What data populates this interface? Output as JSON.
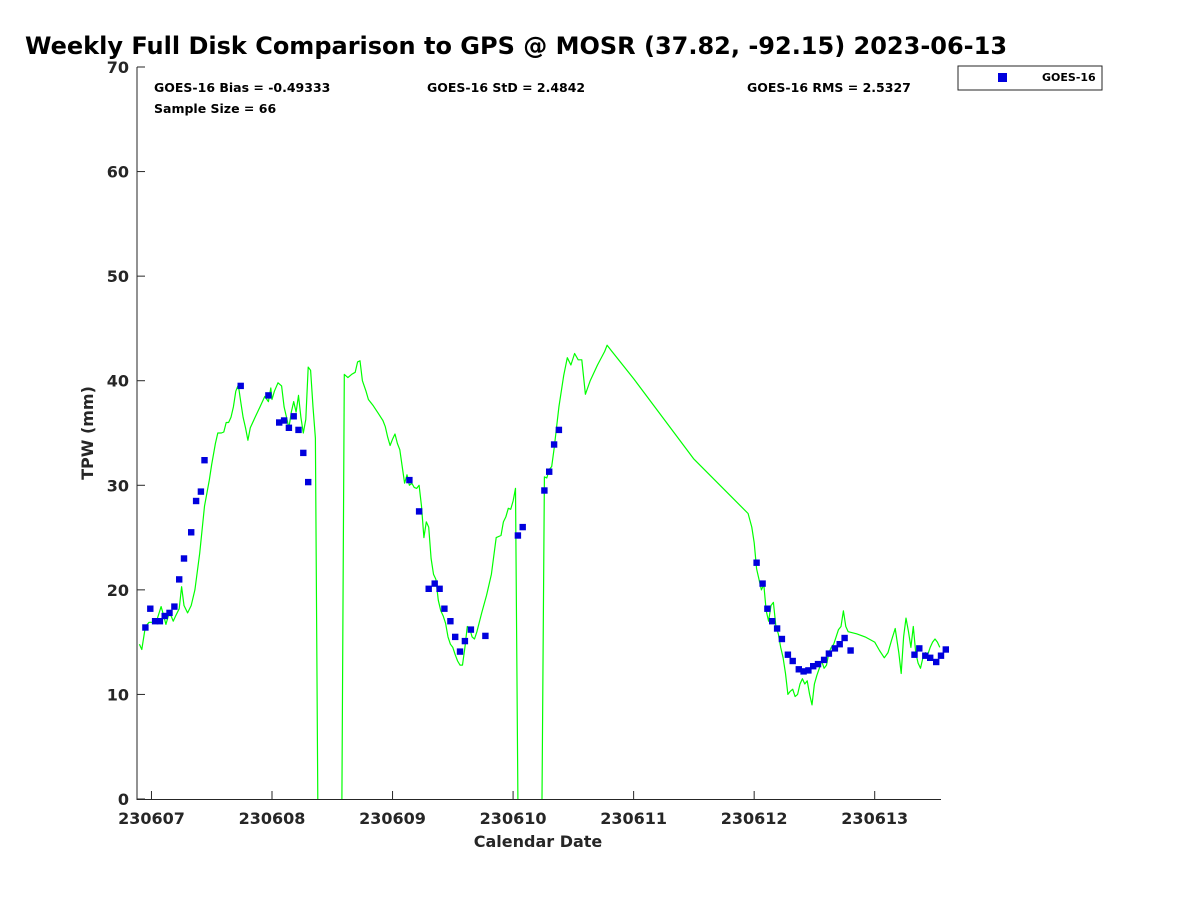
{
  "chart_data": {
    "type": "scatter",
    "title": "Weekly Full Disk Comparison to GPS @ MOSR (37.82, -92.15) 2023-06-13",
    "xlabel": "Calendar Date",
    "ylabel": "TPW (mm)",
    "xlim": [
      -0.12,
      6.55
    ],
    "ylim": [
      0,
      70
    ],
    "x_ticks": [
      {
        "value": 0,
        "label": "230607"
      },
      {
        "value": 1,
        "label": "230608"
      },
      {
        "value": 2,
        "label": "230609"
      },
      {
        "value": 3,
        "label": "230610"
      },
      {
        "value": 4,
        "label": "230611"
      },
      {
        "value": 5,
        "label": "230612"
      },
      {
        "value": 6,
        "label": "230613"
      }
    ],
    "y_ticks": [
      {
        "value": 0,
        "label": "0"
      },
      {
        "value": 10,
        "label": "10"
      },
      {
        "value": 20,
        "label": "20"
      },
      {
        "value": 30,
        "label": "30"
      },
      {
        "value": 40,
        "label": "40"
      },
      {
        "value": 50,
        "label": "50"
      },
      {
        "value": 60,
        "label": "60"
      },
      {
        "value": 70,
        "label": "70"
      }
    ],
    "stats": {
      "bias": "GOES-16 Bias = -0.49333",
      "std": "GOES-16 StD = 2.4842",
      "rms": "GOES-16 RMS = 2.5327",
      "sample": "Sample Size = 66"
    },
    "legend": {
      "position": "top-right-outside",
      "entries": [
        {
          "label": "GOES-16",
          "marker": "square",
          "color": "#0000dd"
        }
      ]
    },
    "gps_color": "#00ff00",
    "goes_color": "#0000dd",
    "series": [
      {
        "name": "GPS",
        "kind": "line",
        "points": [
          [
            -0.1,
            14.8
          ],
          [
            -0.08,
            14.3
          ],
          [
            -0.05,
            16.5
          ],
          [
            -0.02,
            16.9
          ],
          [
            0.02,
            16.9
          ],
          [
            0.05,
            17.3
          ],
          [
            0.08,
            18.4
          ],
          [
            0.1,
            17.6
          ],
          [
            0.12,
            16.7
          ],
          [
            0.15,
            17.9
          ],
          [
            0.18,
            17.0
          ],
          [
            0.2,
            17.5
          ],
          [
            0.23,
            18.2
          ],
          [
            0.25,
            20.3
          ],
          [
            0.27,
            18.5
          ],
          [
            0.3,
            17.8
          ],
          [
            0.33,
            18.5
          ],
          [
            0.36,
            20.0
          ],
          [
            0.4,
            23.5
          ],
          [
            0.44,
            28.0
          ],
          [
            0.48,
            30.5
          ],
          [
            0.5,
            32.0
          ],
          [
            0.53,
            34.0
          ],
          [
            0.55,
            35.0
          ],
          [
            0.58,
            35.0
          ],
          [
            0.6,
            35.1
          ],
          [
            0.62,
            36.0
          ],
          [
            0.64,
            36.0
          ],
          [
            0.66,
            36.5
          ],
          [
            0.68,
            37.5
          ],
          [
            0.7,
            39.0
          ],
          [
            0.72,
            39.6
          ],
          [
            0.74,
            38.0
          ],
          [
            0.76,
            36.5
          ],
          [
            0.78,
            35.5
          ],
          [
            0.8,
            34.3
          ],
          [
            0.82,
            35.5
          ],
          [
            0.86,
            36.5
          ],
          [
            0.9,
            37.5
          ],
          [
            0.94,
            38.5
          ],
          [
            0.97,
            38.0
          ],
          [
            0.99,
            39.3
          ],
          [
            1.0,
            38.2
          ],
          [
            1.02,
            39.0
          ],
          [
            1.05,
            39.8
          ],
          [
            1.08,
            39.5
          ],
          [
            1.1,
            37.5
          ],
          [
            1.12,
            36.5
          ],
          [
            1.14,
            35.5
          ],
          [
            1.16,
            37.0
          ],
          [
            1.18,
            38.0
          ],
          [
            1.2,
            37.0
          ],
          [
            1.22,
            38.6
          ],
          [
            1.24,
            36.5
          ],
          [
            1.26,
            35.0
          ],
          [
            1.28,
            36.3
          ],
          [
            1.3,
            41.3
          ],
          [
            1.32,
            41.0
          ],
          [
            1.34,
            37.5
          ],
          [
            1.36,
            34.5
          ],
          [
            1.38,
            0
          ],
          null,
          [
            1.58,
            0
          ],
          [
            1.6,
            40.6
          ],
          [
            1.63,
            40.3
          ],
          [
            1.66,
            40.6
          ],
          [
            1.69,
            40.8
          ],
          [
            1.71,
            41.8
          ],
          [
            1.73,
            41.9
          ],
          [
            1.75,
            40.0
          ],
          [
            1.78,
            39.0
          ],
          [
            1.8,
            38.2
          ],
          [
            1.84,
            37.6
          ],
          [
            1.88,
            36.9
          ],
          [
            1.92,
            36.2
          ],
          [
            1.94,
            35.6
          ],
          [
            1.96,
            34.6
          ],
          [
            1.98,
            33.8
          ],
          [
            2.0,
            34.4
          ],
          [
            2.02,
            34.9
          ],
          [
            2.04,
            34.0
          ],
          [
            2.06,
            33.4
          ],
          [
            2.08,
            31.8
          ],
          [
            2.1,
            30.2
          ],
          [
            2.12,
            31.0
          ],
          [
            2.14,
            30.0
          ],
          [
            2.16,
            30.2
          ],
          [
            2.18,
            29.8
          ],
          [
            2.2,
            29.7
          ],
          [
            2.22,
            30.0
          ],
          [
            2.24,
            28.0
          ],
          [
            2.26,
            25.0
          ],
          [
            2.28,
            26.5
          ],
          [
            2.3,
            26.0
          ],
          [
            2.32,
            23.0
          ],
          [
            2.34,
            21.5
          ],
          [
            2.36,
            21.0
          ],
          [
            2.38,
            19.0
          ],
          [
            2.4,
            18.0
          ],
          [
            2.42,
            17.5
          ],
          [
            2.44,
            16.8
          ],
          [
            2.46,
            15.5
          ],
          [
            2.48,
            14.8
          ],
          [
            2.5,
            14.5
          ],
          [
            2.52,
            13.8
          ],
          [
            2.54,
            13.2
          ],
          [
            2.56,
            12.8
          ],
          [
            2.58,
            12.8
          ],
          [
            2.6,
            14.5
          ],
          [
            2.62,
            16.5
          ],
          [
            2.64,
            16.3
          ],
          [
            2.66,
            15.5
          ],
          [
            2.68,
            15.3
          ],
          [
            2.7,
            16.0
          ],
          [
            2.74,
            17.8
          ],
          [
            2.78,
            19.5
          ],
          [
            2.82,
            21.5
          ],
          [
            2.86,
            25.0
          ],
          [
            2.9,
            25.2
          ],
          [
            2.92,
            26.5
          ],
          [
            2.94,
            27.0
          ],
          [
            2.96,
            27.8
          ],
          [
            2.98,
            27.7
          ],
          [
            3.0,
            28.5
          ],
          [
            3.02,
            29.7
          ],
          [
            3.04,
            0
          ],
          null,
          [
            3.24,
            0
          ],
          [
            3.26,
            30.8
          ],
          [
            3.28,
            30.7
          ],
          [
            3.3,
            31.5
          ],
          [
            3.32,
            31.8
          ],
          [
            3.34,
            33.5
          ],
          [
            3.36,
            35.5
          ],
          [
            3.38,
            37.5
          ],
          [
            3.42,
            40.5
          ],
          [
            3.45,
            42.2
          ],
          [
            3.48,
            41.5
          ],
          [
            3.51,
            42.6
          ],
          [
            3.54,
            42.0
          ],
          [
            3.57,
            42.0
          ],
          [
            3.6,
            38.7
          ],
          [
            3.64,
            40.0
          ],
          [
            3.7,
            41.5
          ],
          [
            3.76,
            42.8
          ],
          [
            3.78,
            43.4
          ],
          [
            3.82,
            42.8
          ],
          [
            4.0,
            40.2
          ],
          [
            4.5,
            32.5
          ],
          [
            4.95,
            27.3
          ],
          [
            4.98,
            26.0
          ],
          [
            5.0,
            24.5
          ],
          [
            5.02,
            22.0
          ],
          [
            5.04,
            21.0
          ],
          [
            5.06,
            20.0
          ],
          [
            5.08,
            20.5
          ],
          [
            5.1,
            18.0
          ],
          [
            5.12,
            17.0
          ],
          [
            5.14,
            18.5
          ],
          [
            5.16,
            18.8
          ],
          [
            5.18,
            16.5
          ],
          [
            5.2,
            15.8
          ],
          [
            5.22,
            14.5
          ],
          [
            5.24,
            13.5
          ],
          [
            5.26,
            12.0
          ],
          [
            5.28,
            10.0
          ],
          [
            5.3,
            10.3
          ],
          [
            5.32,
            10.5
          ],
          [
            5.34,
            9.8
          ],
          [
            5.36,
            10.0
          ],
          [
            5.38,
            11.0
          ],
          [
            5.4,
            11.5
          ],
          [
            5.42,
            11.0
          ],
          [
            5.44,
            11.3
          ],
          [
            5.46,
            10.0
          ],
          [
            5.48,
            9.0
          ],
          [
            5.5,
            11.0
          ],
          [
            5.52,
            11.8
          ],
          [
            5.54,
            12.5
          ],
          [
            5.56,
            13.2
          ],
          [
            5.58,
            12.5
          ],
          [
            5.6,
            12.8
          ],
          [
            5.62,
            14.0
          ],
          [
            5.64,
            14.5
          ],
          [
            5.66,
            14.8
          ],
          [
            5.68,
            15.5
          ],
          [
            5.7,
            16.2
          ],
          [
            5.72,
            16.5
          ],
          [
            5.74,
            18.0
          ],
          [
            5.76,
            16.5
          ],
          [
            5.78,
            16.0
          ],
          [
            5.85,
            15.8
          ],
          [
            5.92,
            15.5
          ],
          [
            6.0,
            15.0
          ],
          [
            6.04,
            14.2
          ],
          [
            6.08,
            13.5
          ],
          [
            6.11,
            14.0
          ],
          [
            6.14,
            15.2
          ],
          [
            6.17,
            16.3
          ],
          [
            6.2,
            14.0
          ],
          [
            6.22,
            12.0
          ],
          [
            6.24,
            15.5
          ],
          [
            6.26,
            17.3
          ],
          [
            6.28,
            16.0
          ],
          [
            6.3,
            14.5
          ],
          [
            6.32,
            16.5
          ],
          [
            6.34,
            14.0
          ],
          [
            6.36,
            13.0
          ],
          [
            6.38,
            12.5
          ],
          [
            6.4,
            13.5
          ],
          [
            6.42,
            14.0
          ],
          [
            6.44,
            13.8
          ],
          [
            6.46,
            14.5
          ],
          [
            6.48,
            15.0
          ],
          [
            6.5,
            15.3
          ],
          [
            6.52,
            15.0
          ],
          [
            6.54,
            14.5
          ]
        ]
      },
      {
        "name": "GOES-16",
        "kind": "scatter",
        "marker": "square",
        "points": [
          [
            -0.05,
            16.4
          ],
          [
            -0.01,
            18.2
          ],
          [
            0.03,
            17.0
          ],
          [
            0.07,
            17.0
          ],
          [
            0.11,
            17.5
          ],
          [
            0.15,
            17.8
          ],
          [
            0.19,
            18.4
          ],
          [
            0.23,
            21.0
          ],
          [
            0.27,
            23.0
          ],
          [
            0.33,
            25.5
          ],
          [
            0.37,
            28.5
          ],
          [
            0.41,
            29.4
          ],
          [
            0.44,
            32.4
          ],
          [
            0.74,
            39.5
          ],
          [
            0.97,
            38.6
          ],
          [
            1.06,
            36.0
          ],
          [
            1.1,
            36.2
          ],
          [
            1.14,
            35.5
          ],
          [
            1.18,
            36.6
          ],
          [
            1.22,
            35.3
          ],
          [
            1.26,
            33.1
          ],
          [
            1.3,
            30.3
          ],
          [
            2.14,
            30.5
          ],
          [
            2.22,
            27.5
          ],
          [
            2.3,
            20.1
          ],
          [
            2.35,
            20.6
          ],
          [
            2.39,
            20.1
          ],
          [
            2.43,
            18.2
          ],
          [
            2.48,
            17.0
          ],
          [
            2.52,
            15.5
          ],
          [
            2.56,
            14.1
          ],
          [
            2.6,
            15.1
          ],
          [
            2.65,
            16.2
          ],
          [
            2.77,
            15.6
          ],
          [
            3.04,
            25.2
          ],
          [
            3.08,
            26.0
          ],
          [
            3.26,
            29.5
          ],
          [
            3.3,
            31.3
          ],
          [
            3.34,
            33.9
          ],
          [
            3.38,
            35.3
          ],
          [
            5.02,
            22.6
          ],
          [
            5.07,
            20.6
          ],
          [
            5.11,
            18.2
          ],
          [
            5.15,
            17.0
          ],
          [
            5.19,
            16.3
          ],
          [
            5.23,
            15.3
          ],
          [
            5.28,
            13.8
          ],
          [
            5.32,
            13.2
          ],
          [
            5.37,
            12.4
          ],
          [
            5.41,
            12.2
          ],
          [
            5.45,
            12.3
          ],
          [
            5.49,
            12.7
          ],
          [
            5.53,
            12.9
          ],
          [
            5.58,
            13.3
          ],
          [
            5.62,
            13.9
          ],
          [
            5.67,
            14.4
          ],
          [
            5.71,
            14.8
          ],
          [
            5.75,
            15.4
          ],
          [
            5.8,
            14.2
          ],
          [
            6.33,
            13.8
          ],
          [
            6.37,
            14.4
          ],
          [
            6.42,
            13.7
          ],
          [
            6.46,
            13.5
          ],
          [
            6.51,
            13.1
          ],
          [
            6.55,
            13.7
          ],
          [
            6.59,
            14.3
          ]
        ]
      }
    ]
  }
}
